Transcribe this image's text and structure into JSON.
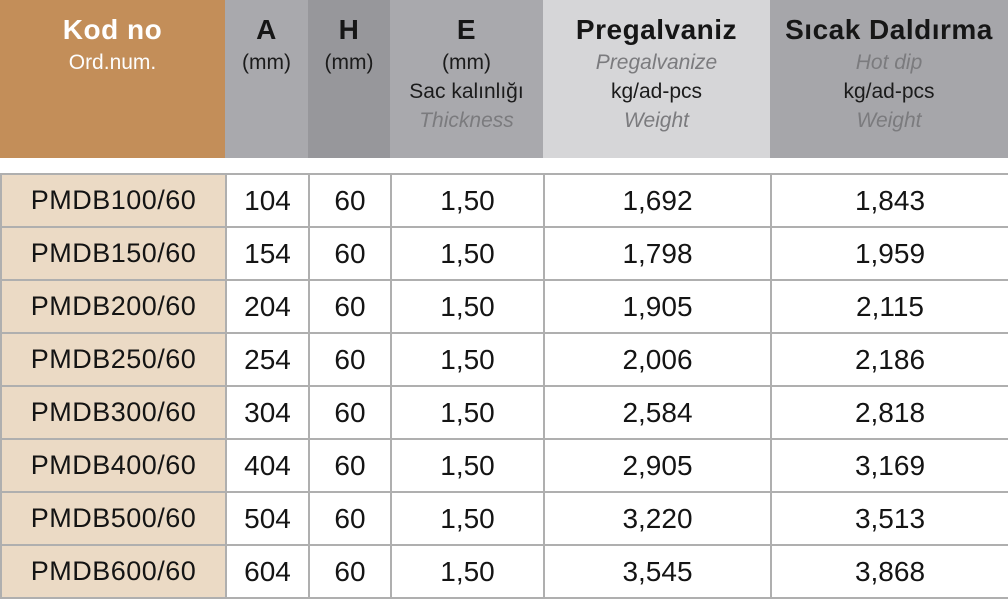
{
  "columns": {
    "kod": {
      "title": "Kod no",
      "subtitle": "Ord.num."
    },
    "a": {
      "title": "A",
      "unit": "(mm)"
    },
    "h": {
      "title": "H",
      "unit": "(mm)"
    },
    "e": {
      "title": "E",
      "unit": "(mm)",
      "label_tr": "Sac kalınlığı",
      "label_en": "Thickness"
    },
    "pregalvaniz": {
      "title": "Pregalvaniz",
      "title_en": "Pregalvanize",
      "unit": "kg/ad-pcs",
      "label_en": "Weight"
    },
    "sicak_daldirma": {
      "title": "Sıcak Daldırma",
      "title_en": "Hot dip",
      "unit": "kg/ad-pcs",
      "label_en": "Weight"
    }
  },
  "rows": [
    [
      "PMDB100/60",
      "104",
      "60",
      "1,50",
      "1,692",
      "1,843"
    ],
    [
      "PMDB150/60",
      "154",
      "60",
      "1,50",
      "1,798",
      "1,959"
    ],
    [
      "PMDB200/60",
      "204",
      "60",
      "1,50",
      "1,905",
      "2,115"
    ],
    [
      "PMDB250/60",
      "254",
      "60",
      "1,50",
      "2,006",
      "2,186"
    ],
    [
      "PMDB300/60",
      "304",
      "60",
      "1,50",
      "2,584",
      "2,818"
    ],
    [
      "PMDB400/60",
      "404",
      "60",
      "1,50",
      "2,905",
      "3,169"
    ],
    [
      "PMDB500/60",
      "504",
      "60",
      "1,50",
      "3,220",
      "3,513"
    ],
    [
      "PMDB600/60",
      "604",
      "60",
      "1,50",
      "3,545",
      "3,868"
    ]
  ],
  "colors": {
    "header_brown": "#C38E59",
    "header_gray_light": "#A9A9AD",
    "header_gray_mid": "#97979B",
    "header_pregalvaniz": "#D6D6D8",
    "header_sicak": "#A6A6AA",
    "code_column_bg": "#EBDAC5",
    "grid_border": "#AFAFAF",
    "secondary_text": "#7B7B7E"
  }
}
